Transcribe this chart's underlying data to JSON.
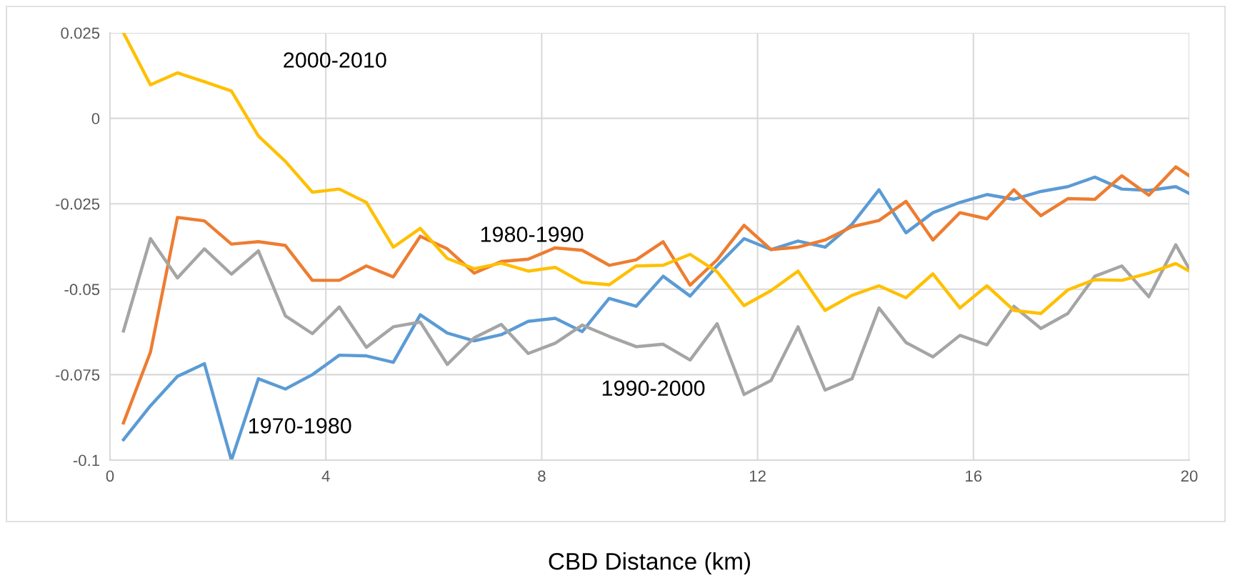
{
  "chart_data": {
    "type": "line",
    "xlabel": "CBD Distance (km)",
    "x": [
      0.25,
      0.75,
      1.25,
      1.75,
      2.25,
      2.75,
      3.25,
      3.75,
      4.25,
      4.75,
      5.25,
      5.75,
      6.25,
      6.75,
      7.25,
      7.75,
      8.25,
      8.75,
      9.25,
      9.75,
      10.25,
      10.75,
      11.25,
      11.75,
      12.25,
      12.75,
      13.25,
      13.75,
      14.25,
      14.75,
      15.25,
      15.75,
      16.25,
      16.75,
      17.25,
      17.75,
      18.25,
      18.75,
      19.25,
      19.75,
      20
    ],
    "series": [
      {
        "name": "1970-1980",
        "color": "#5b9bd5",
        "values": [
          -0.094,
          -0.0841,
          -0.0755,
          -0.0718,
          -0.1,
          -0.0762,
          -0.0792,
          -0.075,
          -0.0693,
          -0.0695,
          -0.0714,
          -0.0575,
          -0.0628,
          -0.0651,
          -0.0633,
          -0.0594,
          -0.0585,
          -0.0624,
          -0.0527,
          -0.055,
          -0.0462,
          -0.052,
          -0.0432,
          -0.0352,
          -0.0384,
          -0.0359,
          -0.0377,
          -0.031,
          -0.0209,
          -0.0335,
          -0.0276,
          -0.0246,
          -0.0223,
          -0.0237,
          -0.0214,
          -0.02,
          -0.0172,
          -0.0207,
          -0.0211,
          -0.02,
          -0.022
        ]
      },
      {
        "name": "1980-1990",
        "color": "#ed7d31",
        "values": [
          -0.0891,
          -0.0684,
          -0.029,
          -0.03,
          -0.0368,
          -0.0361,
          -0.0372,
          -0.0474,
          -0.0474,
          -0.0432,
          -0.0464,
          -0.0345,
          -0.0382,
          -0.0453,
          -0.0419,
          -0.0412,
          -0.0379,
          -0.0386,
          -0.043,
          -0.0414,
          -0.0361,
          -0.0488,
          -0.0414,
          -0.0313,
          -0.0384,
          -0.0377,
          -0.0356,
          -0.0317,
          -0.0299,
          -0.0243,
          -0.0356,
          -0.0276,
          -0.0294,
          -0.0209,
          -0.0285,
          -0.0235,
          -0.0237,
          -0.0168,
          -0.0225,
          -0.0142,
          -0.0168
        ]
      },
      {
        "name": "1990-2000",
        "color": "#a5a5a5",
        "values": [
          -0.0622,
          -0.0352,
          -0.0467,
          -0.0382,
          -0.0456,
          -0.0388,
          -0.0578,
          -0.063,
          -0.0552,
          -0.067,
          -0.061,
          -0.0596,
          -0.072,
          -0.0642,
          -0.0603,
          -0.0688,
          -0.0658,
          -0.0605,
          -0.0638,
          -0.0668,
          -0.0661,
          -0.0707,
          -0.0601,
          -0.0808,
          -0.0767,
          -0.061,
          -0.0795,
          -0.0762,
          -0.0555,
          -0.0656,
          -0.0698,
          -0.0635,
          -0.0663,
          -0.055,
          -0.0615,
          -0.0571,
          -0.0462,
          -0.0432,
          -0.0522,
          -0.037,
          -0.0441
        ]
      },
      {
        "name": "2000-2010",
        "color": "#ffc000",
        "values": [
          0.025,
          0.0098,
          0.0133,
          0.0107,
          0.008,
          -0.0052,
          -0.0126,
          -0.0216,
          -0.0207,
          -0.0246,
          -0.0377,
          -0.0322,
          -0.041,
          -0.044,
          -0.0424,
          -0.0447,
          -0.0436,
          -0.048,
          -0.0487,
          -0.0432,
          -0.043,
          -0.0398,
          -0.0449,
          -0.0548,
          -0.0504,
          -0.0447,
          -0.0562,
          -0.0518,
          -0.049,
          -0.0525,
          -0.0455,
          -0.0555,
          -0.049,
          -0.0562,
          -0.0571,
          -0.0502,
          -0.0472,
          -0.0474,
          -0.0453,
          -0.0425,
          -0.0447
        ]
      }
    ],
    "xlim": [
      0,
      20
    ],
    "xticks": [
      0,
      4,
      8,
      12,
      16,
      20
    ],
    "ylim": [
      -0.1,
      0.025
    ],
    "yticks": [
      0.025,
      0,
      -0.025,
      -0.05,
      -0.075,
      -0.1
    ],
    "grid": true,
    "legend": false,
    "marker": "none",
    "line_style": "solid"
  }
}
